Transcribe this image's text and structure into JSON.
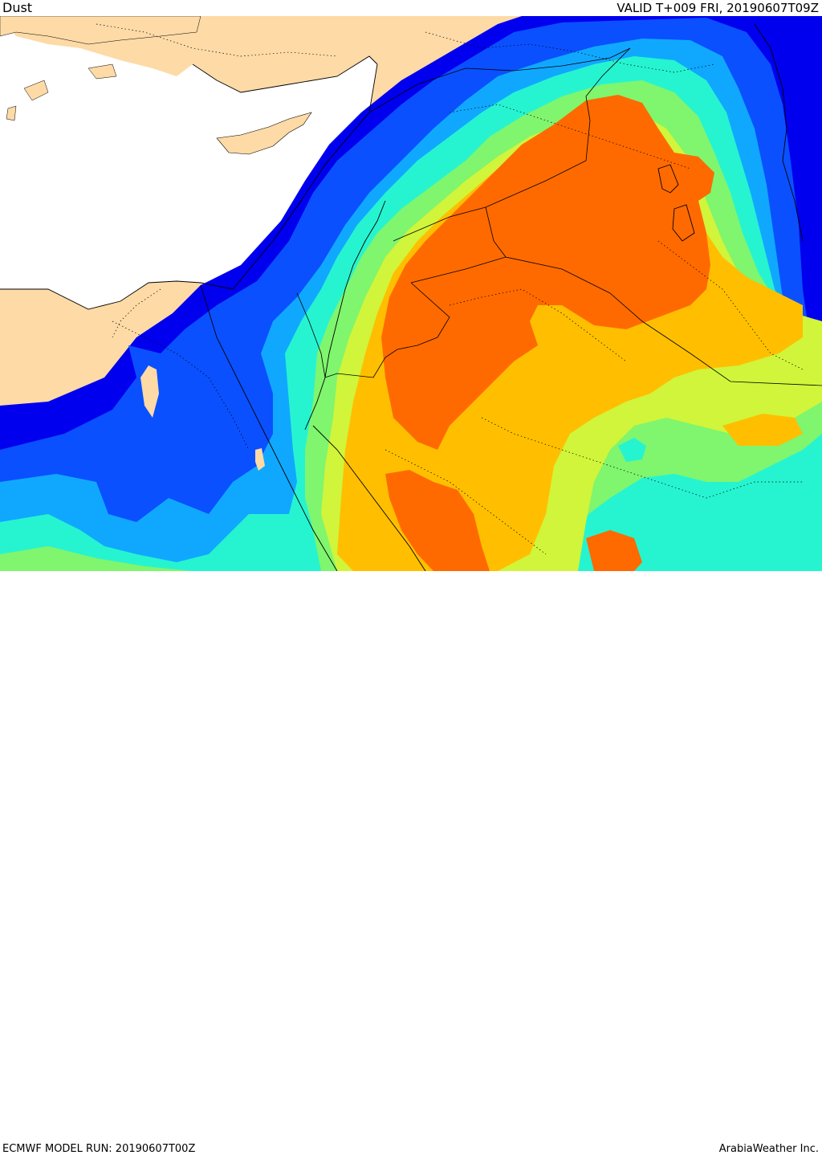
{
  "header": {
    "title": "Dust",
    "valid_time": "VALID T+009 FRI, 20190607T09Z"
  },
  "footer": {
    "model_run": "ECMWF MODEL RUN: 20190607T00Z",
    "credit": "ArabiaWeather Inc."
  },
  "map": {
    "field": "dust",
    "colors": {
      "land": "#fddaa6",
      "sea": "#ffffff",
      "level_1": "#0000ee",
      "level_2": "#0a50ff",
      "level_3": "#10a8ff",
      "level_4": "#26f4d0",
      "level_5": "#80f56e",
      "level_6": "#d0f53a",
      "level_7": "#ffbf00",
      "level_8": "#ff6a00"
    }
  }
}
